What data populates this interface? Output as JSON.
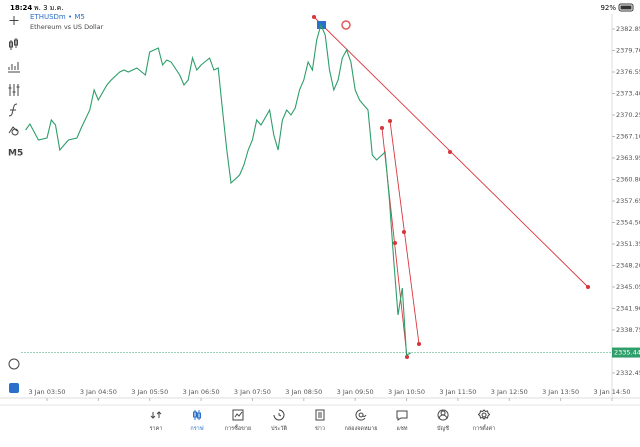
{
  "status_bar": {
    "time": "18:24",
    "date": "พ. 3 ม.ค.",
    "battery": "92%"
  },
  "toolbar": {
    "timeframe": "M5"
  },
  "chart_data": {
    "type": "line",
    "title": "ETHUSDm • M5",
    "subtitle": "Ethereum vs US Dollar",
    "color": "#2e9e6a",
    "x": [
      "3 Jan 03:25",
      "3 Jan 03:30",
      "3 Jan 03:40",
      "3 Jan 03:50",
      "3 Jan 03:55",
      "3 Jan 04:00",
      "3 Jan 04:05",
      "3 Jan 04:15",
      "3 Jan 04:25",
      "3 Jan 04:30",
      "3 Jan 04:40",
      "3 Jan 04:45",
      "3 Jan 04:50",
      "3 Jan 05:00",
      "3 Jan 05:05",
      "3 Jan 05:15",
      "3 Jan 05:20",
      "3 Jan 05:25",
      "3 Jan 05:35",
      "3 Jan 05:45",
      "3 Jan 05:50",
      "3 Jan 06:00",
      "3 Jan 06:05",
      "3 Jan 06:10",
      "3 Jan 06:15",
      "3 Jan 06:25",
      "3 Jan 06:30",
      "3 Jan 06:35",
      "3 Jan 06:40",
      "3 Jan 06:45",
      "3 Jan 06:50",
      "3 Jan 07:00",
      "3 Jan 07:05",
      "3 Jan 07:10",
      "3 Jan 07:15",
      "3 Jan 07:20",
      "3 Jan 07:25",
      "3 Jan 07:35",
      "3 Jan 07:40",
      "3 Jan 07:45",
      "3 Jan 07:50",
      "3 Jan 07:55",
      "3 Jan 08:00",
      "3 Jan 08:10",
      "3 Jan 08:15",
      "3 Jan 08:20",
      "3 Jan 08:25",
      "3 Jan 08:30",
      "3 Jan 08:35",
      "3 Jan 08:40",
      "3 Jan 08:45",
      "3 Jan 08:50",
      "3 Jan 08:55",
      "3 Jan 09:00",
      "3 Jan 09:05",
      "3 Jan 09:10",
      "3 Jan 09:15",
      "3 Jan 09:20",
      "3 Jan 09:25",
      "3 Jan 09:30",
      "3 Jan 09:35",
      "3 Jan 09:40",
      "3 Jan 09:45",
      "3 Jan 09:50",
      "3 Jan 09:55",
      "3 Jan 10:00",
      "3 Jan 10:05",
      "3 Jan 10:10",
      "3 Jan 10:15",
      "3 Jan 10:25",
      "3 Jan 10:30",
      "3 Jan 10:35",
      "3 Jan 10:40",
      "3 Jan 10:45",
      "3 Jan 10:50",
      "3 Jan 10:55"
    ],
    "values": [
      2368.05,
      2368.93,
      2366.59,
      2366.88,
      2369.52,
      2368.78,
      2365.12,
      2366.59,
      2366.88,
      2368.34,
      2370.98,
      2373.91,
      2372.45,
      2374.64,
      2375.38,
      2376.55,
      2376.84,
      2376.55,
      2377.14,
      2376.11,
      2379.48,
      2380.07,
      2377.58,
      2378.31,
      2378.01,
      2376.11,
      2374.64,
      2375.38,
      2378.6,
      2376.84,
      2377.58,
      2378.6,
      2376.84,
      2377.14,
      2370.98,
      2365.12,
      2360.29,
      2361.46,
      2362.92,
      2365.12,
      2366.59,
      2369.52,
      2368.78,
      2370.98,
      2367.32,
      2365.12,
      2369.52,
      2370.98,
      2370.25,
      2371.27,
      2373.91,
      2375.38,
      2378.01,
      2376.84,
      2381.24,
      2383.44,
      2381.97,
      2376.84,
      2373.91,
      2375.38,
      2378.6,
      2379.77,
      2378.01,
      2373.91,
      2372.45,
      2371.71,
      2370.98,
      2364.39,
      2363.66,
      2364.83,
      2357.8,
      2349.0,
      2340.95,
      2344.9,
      2335.08,
      2335.38
    ],
    "current_price": 2335.44,
    "xlim": [
      "3 Jan 03:20",
      "3 Jan 14:50"
    ],
    "xticks": [
      "3 Jan 03:50",
      "3 Jan 04:50",
      "3 Jan 05:50",
      "3 Jan 06:50",
      "3 Jan 07:50",
      "3 Jan 08:50",
      "3 Jan 09:50",
      "3 Jan 10:50",
      "3 Jan 11:50",
      "3 Jan 12:50",
      "3 Jan 13:50",
      "3 Jan 14:50"
    ],
    "ylim": [
      2329.66,
      2385.05
    ],
    "yticks": [
      2382.85,
      {
        "value": 2379.7,
        "label": "2379.70"
      },
      2376.55,
      {
        "value": 2373.4,
        "label": "2373.40"
      },
      2370.25,
      {
        "value": 2367.1,
        "label": "2367.10"
      },
      2363.95,
      {
        "value": 2360.8,
        "label": "2360.80"
      },
      2357.65,
      {
        "value": 2354.5,
        "label": "2354.50"
      },
      2351.35,
      {
        "value": 2348.2,
        "label": "2348.20"
      },
      2345.05,
      {
        "value": 2341.9,
        "label": "2341.90"
      },
      2338.75,
      2332.45
    ]
  },
  "nav": {
    "items": [
      "ราคา",
      "กราฟ",
      "การซื้อขาย",
      "ประวัติ",
      "ข่าว",
      "กล่องจดหมาย",
      "แชท",
      "บัญชี",
      "การตั้งค่า"
    ]
  }
}
